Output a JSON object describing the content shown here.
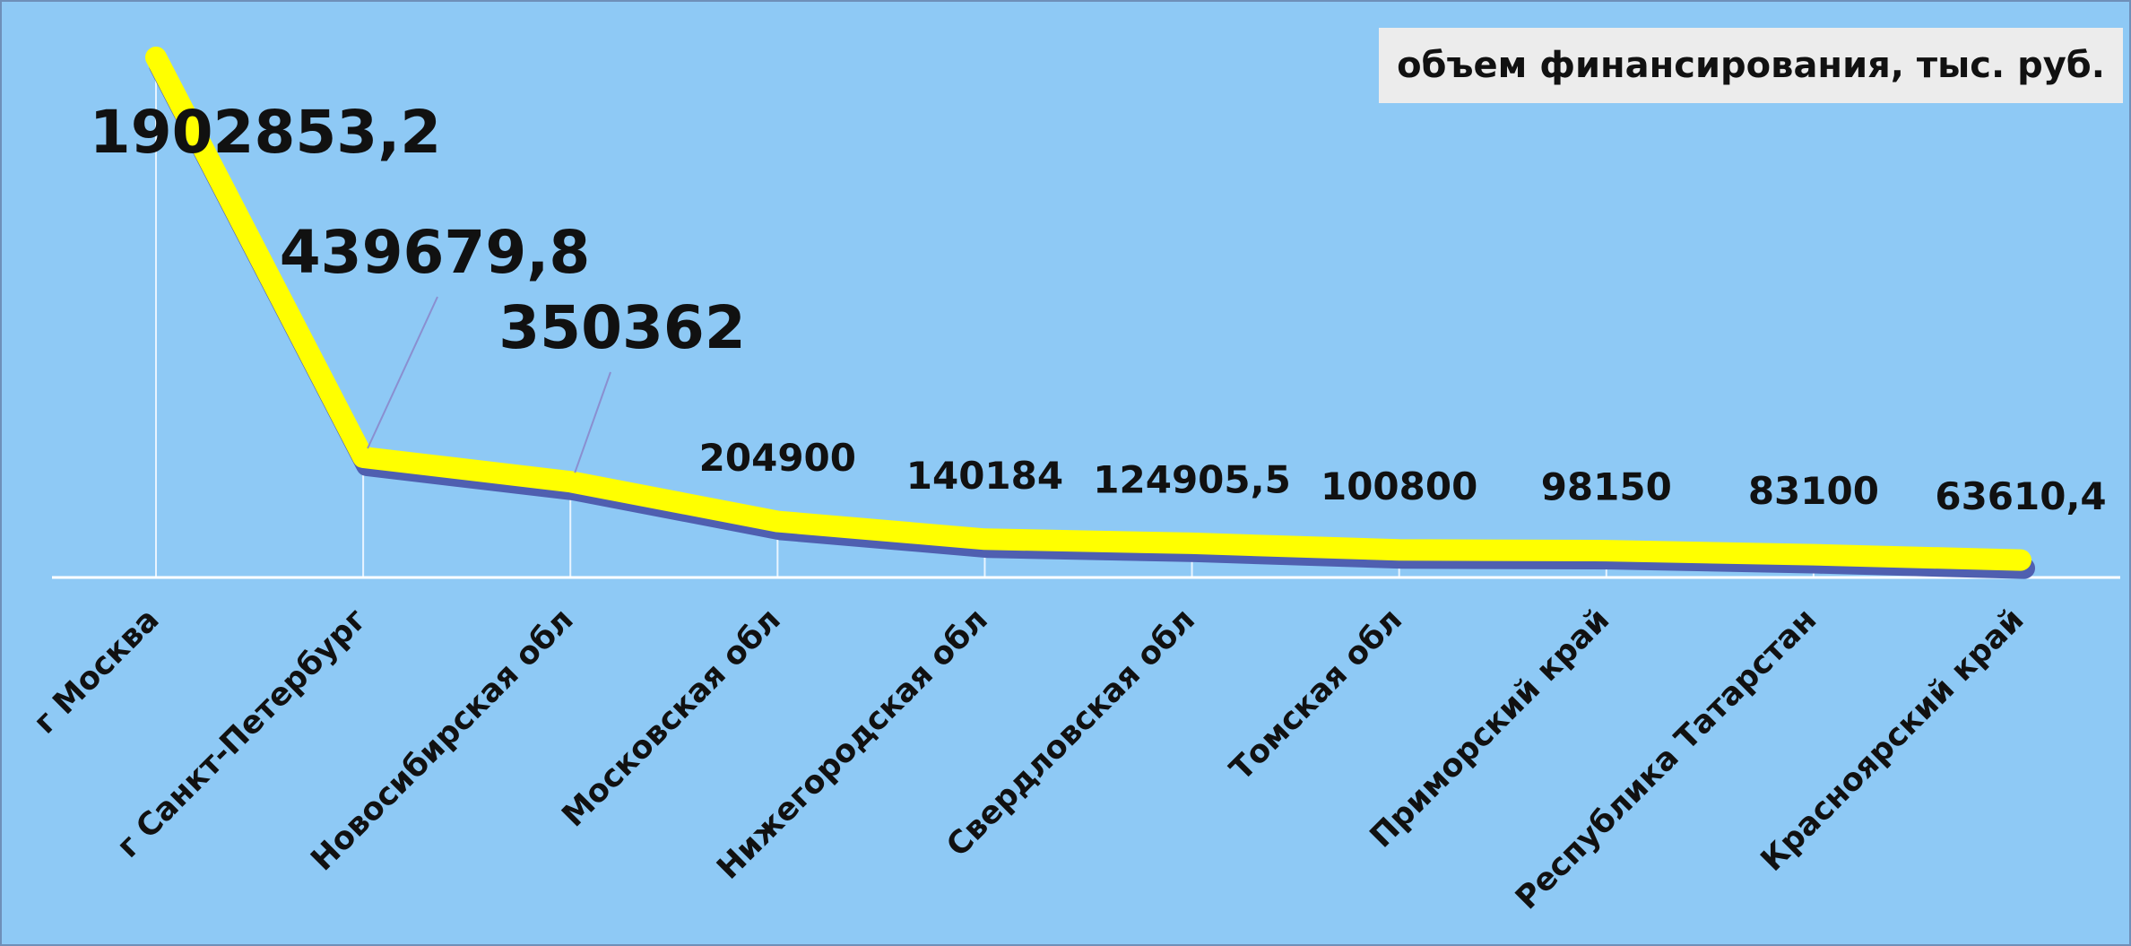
{
  "chart_data": {
    "type": "line",
    "categories": [
      "г Москва",
      "г Санкт-Петербург",
      "Новосибирская обл",
      "Московская обл",
      "Нижегородская обл",
      "Свердловская обл",
      "Томская обл",
      "Приморский край",
      "Республика Татарстан",
      "Красноярский край"
    ],
    "series": [
      {
        "name": "объем финансирования, тыс. руб.",
        "color": "#ffff00",
        "values": [
          1902853.2,
          439679.8,
          350362,
          204900,
          140184,
          124905.5,
          100800,
          98150,
          83100,
          63610.4
        ],
        "value_labels": [
          "1902853,2",
          "439679,8",
          "350362",
          "204900",
          "140184",
          "124905,5",
          "100800",
          "98150",
          "83100",
          "63610,4"
        ]
      }
    ],
    "legend": "top-right"
  }
}
